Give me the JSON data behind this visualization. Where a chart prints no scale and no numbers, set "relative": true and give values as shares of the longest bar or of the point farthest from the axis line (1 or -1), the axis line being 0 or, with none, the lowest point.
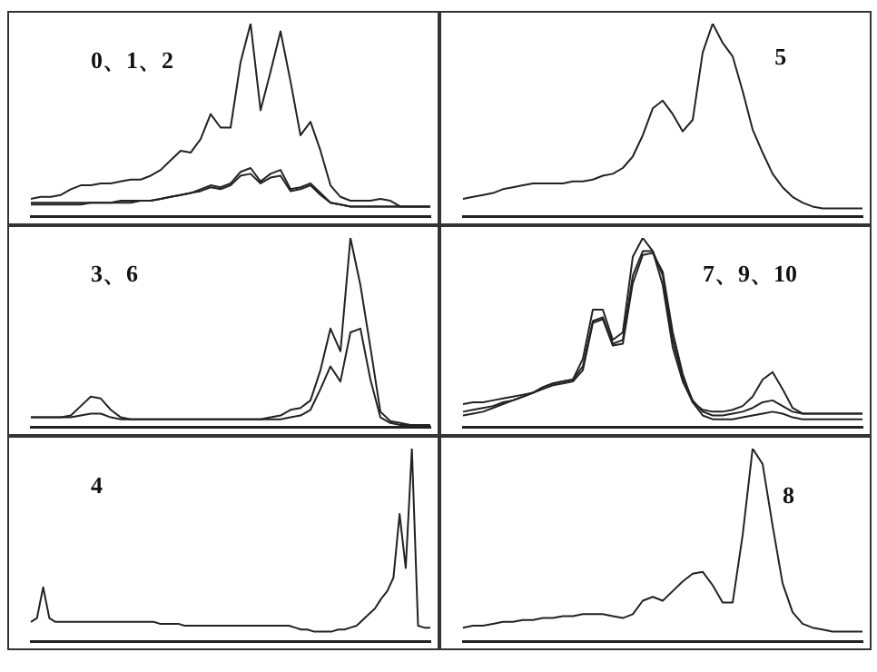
{
  "chart_data": [
    {
      "type": "line",
      "relative": true,
      "annotations": [
        "0、1、2"
      ],
      "categories": [
        null,
        null,
        null,
        null,
        null,
        null,
        null,
        null,
        null,
        null,
        null,
        null,
        null,
        null,
        null,
        null,
        null,
        null,
        null,
        null,
        null,
        null,
        null,
        null,
        null,
        null,
        null,
        null,
        null,
        null,
        null,
        null,
        null,
        null,
        null,
        null,
        null,
        null,
        null,
        null,
        null
      ],
      "series": [
        {
          "color": "#222222",
          "values": [
            0.09,
            0.1,
            0.1,
            0.11,
            0.14,
            0.16,
            0.16,
            0.17,
            0.17,
            0.18,
            0.19,
            0.19,
            0.21,
            0.24,
            0.29,
            0.34,
            0.33,
            0.4,
            0.53,
            0.46,
            0.46,
            0.8,
            1.0,
            0.55,
            0.75,
            0.96,
            0.7,
            0.42,
            0.49,
            0.34,
            0.16,
            0.1,
            0.08,
            0.08,
            0.08,
            0.09,
            0.08,
            0.05,
            0.05,
            0.05,
            0.05
          ]
        },
        {
          "color": "#222222",
          "values": [
            0.07,
            0.07,
            0.07,
            0.07,
            0.07,
            0.07,
            0.07,
            0.07,
            0.07,
            0.08,
            0.08,
            0.08,
            0.08,
            0.09,
            0.1,
            0.11,
            0.12,
            0.14,
            0.16,
            0.15,
            0.17,
            0.23,
            0.25,
            0.18,
            0.22,
            0.24,
            0.14,
            0.15,
            0.17,
            0.12,
            0.07,
            0.06,
            0.05,
            0.05,
            0.05,
            0.05,
            0.05,
            0.05,
            0.05,
            0.05,
            0.05
          ]
        },
        {
          "color": "#222222",
          "values": [
            0.06,
            0.06,
            0.06,
            0.06,
            0.06,
            0.06,
            0.07,
            0.07,
            0.07,
            0.07,
            0.07,
            0.08,
            0.08,
            0.09,
            0.1,
            0.11,
            0.12,
            0.13,
            0.15,
            0.14,
            0.16,
            0.21,
            0.22,
            0.17,
            0.2,
            0.21,
            0.13,
            0.14,
            0.16,
            0.11,
            0.07,
            0.06,
            0.05,
            0.05,
            0.05,
            0.05,
            0.05,
            0.05,
            0.05,
            0.05,
            0.05
          ]
        }
      ]
    },
    {
      "type": "line",
      "relative": true,
      "annotations": [
        "5"
      ],
      "categories": [
        null,
        null,
        null,
        null,
        null,
        null,
        null,
        null,
        null,
        null,
        null,
        null,
        null,
        null,
        null,
        null,
        null,
        null,
        null,
        null,
        null,
        null,
        null,
        null,
        null,
        null,
        null,
        null,
        null,
        null,
        null,
        null,
        null,
        null,
        null,
        null,
        null,
        null,
        null,
        null,
        null
      ],
      "series": [
        {
          "color": "#222222",
          "values": [
            0.09,
            0.1,
            0.11,
            0.12,
            0.14,
            0.15,
            0.16,
            0.17,
            0.17,
            0.17,
            0.17,
            0.18,
            0.18,
            0.19,
            0.21,
            0.22,
            0.25,
            0.31,
            0.42,
            0.56,
            0.6,
            0.53,
            0.44,
            0.5,
            0.85,
            1.0,
            0.9,
            0.83,
            0.65,
            0.45,
            0.33,
            0.22,
            0.15,
            0.1,
            0.07,
            0.05,
            0.04,
            0.04,
            0.04,
            0.04,
            0.04
          ]
        }
      ]
    },
    {
      "type": "line",
      "relative": true,
      "annotations": [
        "3、6"
      ],
      "categories": [
        null,
        null,
        null,
        null,
        null,
        null,
        null,
        null,
        null,
        null,
        null,
        null,
        null,
        null,
        null,
        null,
        null,
        null,
        null,
        null,
        null,
        null,
        null,
        null,
        null,
        null,
        null,
        null,
        null,
        null,
        null,
        null,
        null,
        null,
        null,
        null,
        null,
        null,
        null,
        null,
        null
      ],
      "series": [
        {
          "color": "#222222",
          "values": [
            0.05,
            0.05,
            0.05,
            0.05,
            0.06,
            0.11,
            0.16,
            0.15,
            0.09,
            0.05,
            0.04,
            0.04,
            0.04,
            0.04,
            0.04,
            0.04,
            0.04,
            0.04,
            0.04,
            0.04,
            0.04,
            0.04,
            0.04,
            0.04,
            0.05,
            0.06,
            0.09,
            0.1,
            0.14,
            0.3,
            0.52,
            0.4,
            1.0,
            0.75,
            0.42,
            0.08,
            0.03,
            0.02,
            0.01,
            0.01,
            0.01
          ]
        },
        {
          "color": "#222222",
          "values": [
            0.05,
            0.05,
            0.05,
            0.05,
            0.05,
            0.06,
            0.07,
            0.07,
            0.05,
            0.04,
            0.04,
            0.04,
            0.04,
            0.04,
            0.04,
            0.04,
            0.04,
            0.04,
            0.04,
            0.04,
            0.04,
            0.04,
            0.04,
            0.04,
            0.04,
            0.04,
            0.05,
            0.06,
            0.09,
            0.2,
            0.32,
            0.24,
            0.5,
            0.52,
            0.25,
            0.05,
            0.02,
            0.01,
            0.01,
            0.01,
            0.01
          ]
        }
      ]
    },
    {
      "type": "line",
      "relative": true,
      "annotations": [
        "7、9、10"
      ],
      "categories": [
        null,
        null,
        null,
        null,
        null,
        null,
        null,
        null,
        null,
        null,
        null,
        null,
        null,
        null,
        null,
        null,
        null,
        null,
        null,
        null,
        null,
        null,
        null,
        null,
        null,
        null,
        null,
        null,
        null,
        null,
        null,
        null,
        null,
        null,
        null,
        null,
        null,
        null,
        null,
        null,
        null
      ],
      "series": [
        {
          "color": "#222222",
          "values": [
            0.12,
            0.13,
            0.13,
            0.14,
            0.15,
            0.16,
            0.17,
            0.18,
            0.21,
            0.23,
            0.24,
            0.25,
            0.36,
            0.62,
            0.62,
            0.46,
            0.5,
            0.9,
            1.0,
            0.93,
            0.75,
            0.42,
            0.24,
            0.13,
            0.09,
            0.08,
            0.08,
            0.09,
            0.11,
            0.16,
            0.25,
            0.29,
            0.2,
            0.1,
            0.07,
            0.07,
            0.07,
            0.07,
            0.07,
            0.07,
            0.07
          ]
        },
        {
          "color": "#222222",
          "values": [
            0.08,
            0.09,
            0.1,
            0.11,
            0.13,
            0.14,
            0.16,
            0.18,
            0.21,
            0.23,
            0.24,
            0.25,
            0.32,
            0.56,
            0.58,
            0.44,
            0.46,
            0.8,
            0.93,
            0.93,
            0.8,
            0.46,
            0.26,
            0.14,
            0.08,
            0.06,
            0.06,
            0.07,
            0.08,
            0.1,
            0.13,
            0.14,
            0.11,
            0.08,
            0.07,
            0.07,
            0.07,
            0.07,
            0.07,
            0.07,
            0.07
          ]
        },
        {
          "color": "#222222",
          "values": [
            0.06,
            0.07,
            0.08,
            0.1,
            0.12,
            0.14,
            0.16,
            0.18,
            0.2,
            0.22,
            0.23,
            0.24,
            0.3,
            0.55,
            0.57,
            0.43,
            0.44,
            0.76,
            0.91,
            0.92,
            0.82,
            0.5,
            0.28,
            0.13,
            0.06,
            0.04,
            0.04,
            0.04,
            0.05,
            0.06,
            0.07,
            0.08,
            0.07,
            0.05,
            0.04,
            0.04,
            0.04,
            0.04,
            0.04,
            0.04,
            0.04
          ]
        }
      ]
    },
    {
      "type": "line",
      "relative": true,
      "annotations": [
        "4"
      ],
      "categories": [
        null,
        null,
        null,
        null,
        null,
        null,
        null,
        null,
        null,
        null,
        null,
        null,
        null,
        null,
        null,
        null,
        null,
        null,
        null,
        null,
        null,
        null,
        null,
        null,
        null,
        null,
        null,
        null,
        null,
        null,
        null,
        null,
        null,
        null,
        null,
        null,
        null,
        null,
        null,
        null,
        null,
        null,
        null,
        null,
        null,
        null,
        null,
        null,
        null,
        null,
        null,
        null,
        null,
        null,
        null,
        null,
        null,
        null,
        null,
        null,
        null,
        null,
        null,
        null,
        null,
        null
      ],
      "series": [
        {
          "color": "#222222",
          "values": [
            0.1,
            0.12,
            0.28,
            0.12,
            0.1,
            0.1,
            0.1,
            0.1,
            0.1,
            0.1,
            0.1,
            0.1,
            0.1,
            0.1,
            0.1,
            0.1,
            0.1,
            0.1,
            0.1,
            0.1,
            0.1,
            0.09,
            0.09,
            0.09,
            0.09,
            0.08,
            0.08,
            0.08,
            0.08,
            0.08,
            0.08,
            0.08,
            0.08,
            0.08,
            0.08,
            0.08,
            0.08,
            0.08,
            0.08,
            0.08,
            0.08,
            0.08,
            0.08,
            0.07,
            0.06,
            0.06,
            0.05,
            0.05,
            0.05,
            0.05,
            0.06,
            0.06,
            0.07,
            0.08,
            0.11,
            0.14,
            0.17,
            0.22,
            0.26,
            0.33,
            0.66,
            0.38,
            1.0,
            0.08,
            0.07,
            0.07
          ]
        }
      ]
    },
    {
      "type": "line",
      "relative": true,
      "annotations": [
        "8"
      ],
      "categories": [
        null,
        null,
        null,
        null,
        null,
        null,
        null,
        null,
        null,
        null,
        null,
        null,
        null,
        null,
        null,
        null,
        null,
        null,
        null,
        null,
        null,
        null,
        null,
        null,
        null,
        null,
        null,
        null,
        null,
        null,
        null,
        null,
        null,
        null,
        null,
        null,
        null,
        null,
        null,
        null,
        null
      ],
      "series": [
        {
          "color": "#222222",
          "values": [
            0.07,
            0.08,
            0.08,
            0.09,
            0.1,
            0.1,
            0.11,
            0.11,
            0.12,
            0.12,
            0.13,
            0.13,
            0.14,
            0.14,
            0.14,
            0.13,
            0.12,
            0.14,
            0.21,
            0.23,
            0.21,
            0.26,
            0.31,
            0.35,
            0.36,
            0.29,
            0.2,
            0.2,
            0.55,
            1.0,
            0.92,
            0.6,
            0.3,
            0.15,
            0.09,
            0.07,
            0.06,
            0.05,
            0.05,
            0.05,
            0.05
          ]
        }
      ]
    }
  ]
}
